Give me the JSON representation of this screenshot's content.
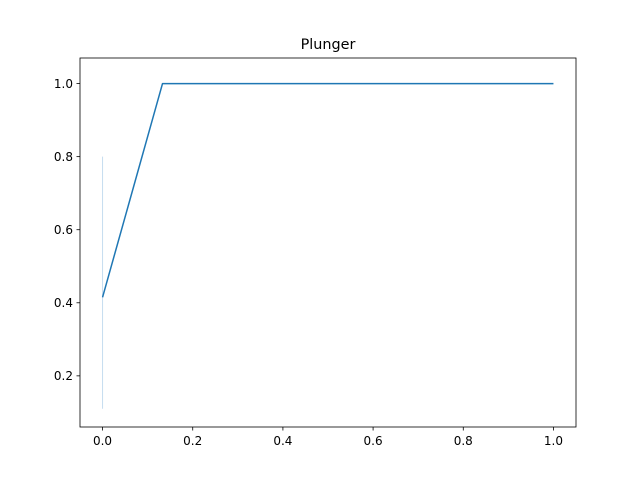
{
  "chart_data": {
    "type": "line",
    "title": "Plunger",
    "xlabel": "",
    "ylabel": "",
    "xlim": [
      -0.05,
      1.05
    ],
    "ylim": [
      0.06,
      1.07
    ],
    "xticks": [
      0.0,
      0.2,
      0.4,
      0.6,
      0.8,
      1.0
    ],
    "xtick_labels": [
      "0.0",
      "0.2",
      "0.4",
      "0.6",
      "0.8",
      "1.0"
    ],
    "yticks": [
      0.2,
      0.4,
      0.6,
      0.8,
      1.0
    ],
    "ytick_labels": [
      "0.2",
      "0.4",
      "0.6",
      "0.8",
      "1.0"
    ],
    "grid": false,
    "series": [
      {
        "color": "#1f77b4",
        "x": [
          0.0,
          0.133,
          0.2,
          0.4,
          0.6,
          0.8,
          1.0
        ],
        "y": [
          0.415,
          1.0,
          1.0,
          1.0,
          1.0,
          1.0,
          1.0
        ]
      }
    ],
    "band": {
      "color": "#c6dcef",
      "x": 0.0,
      "y_low": 0.11,
      "y_high": 0.8
    }
  }
}
